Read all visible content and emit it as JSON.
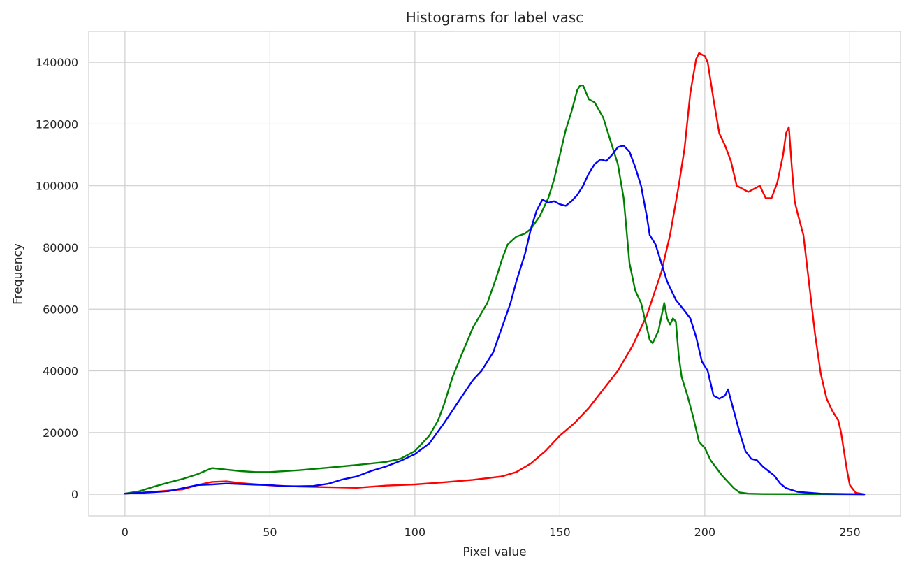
{
  "chart_data": {
    "type": "line",
    "title": "Histograms for label vasc",
    "xlabel": "Pixel value",
    "ylabel": "Frequency",
    "xlim": [
      -12.5,
      267.5
    ],
    "ylim": [
      -7000,
      150000
    ],
    "xticks": [
      0,
      50,
      100,
      150,
      200,
      250
    ],
    "yticks": [
      0,
      20000,
      40000,
      60000,
      80000,
      100000,
      120000,
      140000
    ],
    "xtick_labels": [
      "0",
      "50",
      "100",
      "150",
      "200",
      "250"
    ],
    "ytick_labels": [
      "0",
      "20000",
      "40000",
      "60000",
      "80000",
      "100000",
      "120000",
      "140000"
    ],
    "grid": true,
    "legend": "none",
    "series": [
      {
        "color": "#ff0000",
        "points": [
          [
            0,
            200
          ],
          [
            10,
            800
          ],
          [
            20,
            1600
          ],
          [
            25,
            3000
          ],
          [
            30,
            4000
          ],
          [
            35,
            4200
          ],
          [
            40,
            3600
          ],
          [
            50,
            2900
          ],
          [
            60,
            2500
          ],
          [
            70,
            2300
          ],
          [
            80,
            2100
          ],
          [
            90,
            2800
          ],
          [
            100,
            3200
          ],
          [
            110,
            3900
          ],
          [
            120,
            4700
          ],
          [
            130,
            5800
          ],
          [
            135,
            7200
          ],
          [
            140,
            10000
          ],
          [
            145,
            14000
          ],
          [
            150,
            19000
          ],
          [
            155,
            23000
          ],
          [
            160,
            28000
          ],
          [
            165,
            34000
          ],
          [
            170,
            40000
          ],
          [
            175,
            48000
          ],
          [
            180,
            58000
          ],
          [
            185,
            72000
          ],
          [
            188,
            84000
          ],
          [
            191,
            100000
          ],
          [
            193,
            112000
          ],
          [
            195,
            130000
          ],
          [
            197,
            141000
          ],
          [
            198,
            143000
          ],
          [
            200,
            142000
          ],
          [
            201,
            140000
          ],
          [
            203,
            128000
          ],
          [
            205,
            117000
          ],
          [
            207,
            113000
          ],
          [
            209,
            108000
          ],
          [
            211,
            100000
          ],
          [
            213,
            99000
          ],
          [
            215,
            98000
          ],
          [
            217,
            99000
          ],
          [
            219,
            100000
          ],
          [
            221,
            96000
          ],
          [
            223,
            96000
          ],
          [
            225,
            101000
          ],
          [
            227,
            110000
          ],
          [
            228,
            117000
          ],
          [
            229,
            119000
          ],
          [
            230,
            106000
          ],
          [
            231,
            95000
          ],
          [
            232,
            91000
          ],
          [
            234,
            84000
          ],
          [
            236,
            68000
          ],
          [
            238,
            52000
          ],
          [
            240,
            39000
          ],
          [
            242,
            31000
          ],
          [
            244,
            27000
          ],
          [
            246,
            24000
          ],
          [
            247,
            20000
          ],
          [
            249,
            8000
          ],
          [
            250,
            3000
          ],
          [
            252,
            500
          ],
          [
            255,
            0
          ]
        ]
      },
      {
        "color": "#008000",
        "points": [
          [
            0,
            200
          ],
          [
            5,
            1000
          ],
          [
            10,
            2500
          ],
          [
            15,
            3800
          ],
          [
            20,
            5000
          ],
          [
            25,
            6500
          ],
          [
            30,
            8500
          ],
          [
            35,
            8000
          ],
          [
            40,
            7500
          ],
          [
            45,
            7200
          ],
          [
            50,
            7200
          ],
          [
            60,
            7800
          ],
          [
            70,
            8600
          ],
          [
            80,
            9500
          ],
          [
            90,
            10500
          ],
          [
            95,
            11500
          ],
          [
            100,
            14000
          ],
          [
            105,
            19000
          ],
          [
            108,
            24000
          ],
          [
            110,
            29000
          ],
          [
            113,
            38000
          ],
          [
            116,
            45000
          ],
          [
            120,
            54000
          ],
          [
            125,
            62000
          ],
          [
            128,
            70000
          ],
          [
            130,
            76000
          ],
          [
            132,
            81000
          ],
          [
            135,
            83500
          ],
          [
            138,
            84500
          ],
          [
            140,
            86000
          ],
          [
            143,
            90000
          ],
          [
            146,
            96000
          ],
          [
            148,
            102000
          ],
          [
            150,
            110000
          ],
          [
            152,
            118000
          ],
          [
            154,
            124000
          ],
          [
            156,
            131000
          ],
          [
            157,
            132500
          ],
          [
            158,
            132500
          ],
          [
            160,
            128000
          ],
          [
            162,
            127000
          ],
          [
            165,
            122000
          ],
          [
            167,
            116000
          ],
          [
            170,
            107000
          ],
          [
            172,
            96000
          ],
          [
            174,
            75000
          ],
          [
            176,
            66000
          ],
          [
            178,
            62000
          ],
          [
            180,
            54000
          ],
          [
            181,
            50000
          ],
          [
            182,
            49000
          ],
          [
            184,
            53000
          ],
          [
            186,
            62000
          ],
          [
            187,
            57000
          ],
          [
            188,
            55000
          ],
          [
            189,
            57000
          ],
          [
            190,
            56000
          ],
          [
            191,
            45000
          ],
          [
            192,
            38000
          ],
          [
            194,
            32000
          ],
          [
            196,
            25000
          ],
          [
            198,
            17000
          ],
          [
            200,
            15000
          ],
          [
            202,
            11000
          ],
          [
            204,
            8500
          ],
          [
            206,
            6000
          ],
          [
            208,
            4000
          ],
          [
            210,
            2000
          ],
          [
            212,
            600
          ],
          [
            215,
            200
          ],
          [
            220,
            100
          ],
          [
            255,
            0
          ]
        ]
      },
      {
        "color": "#0000ff",
        "points": [
          [
            0,
            200
          ],
          [
            10,
            700
          ],
          [
            15,
            1000
          ],
          [
            20,
            2000
          ],
          [
            25,
            3000
          ],
          [
            30,
            3200
          ],
          [
            35,
            3500
          ],
          [
            40,
            3300
          ],
          [
            45,
            3100
          ],
          [
            50,
            3000
          ],
          [
            55,
            2600
          ],
          [
            60,
            2600
          ],
          [
            65,
            2700
          ],
          [
            70,
            3400
          ],
          [
            75,
            4800
          ],
          [
            80,
            5800
          ],
          [
            85,
            7600
          ],
          [
            90,
            9000
          ],
          [
            95,
            10800
          ],
          [
            100,
            13000
          ],
          [
            105,
            16500
          ],
          [
            110,
            23000
          ],
          [
            115,
            30000
          ],
          [
            120,
            37000
          ],
          [
            123,
            40000
          ],
          [
            127,
            46000
          ],
          [
            130,
            54000
          ],
          [
            133,
            62000
          ],
          [
            135,
            69000
          ],
          [
            138,
            78000
          ],
          [
            140,
            86000
          ],
          [
            142,
            92000
          ],
          [
            144,
            95500
          ],
          [
            146,
            94500
          ],
          [
            148,
            95000
          ],
          [
            150,
            94000
          ],
          [
            152,
            93500
          ],
          [
            154,
            95000
          ],
          [
            156,
            97000
          ],
          [
            158,
            100000
          ],
          [
            160,
            104000
          ],
          [
            162,
            107000
          ],
          [
            164,
            108500
          ],
          [
            166,
            108000
          ],
          [
            168,
            110000
          ],
          [
            170,
            112500
          ],
          [
            172,
            113000
          ],
          [
            174,
            111000
          ],
          [
            176,
            106000
          ],
          [
            178,
            100000
          ],
          [
            180,
            90000
          ],
          [
            181,
            84000
          ],
          [
            183,
            81000
          ],
          [
            185,
            75000
          ],
          [
            187,
            69000
          ],
          [
            190,
            63000
          ],
          [
            193,
            59500
          ],
          [
            195,
            57000
          ],
          [
            197,
            51000
          ],
          [
            199,
            43000
          ],
          [
            201,
            40000
          ],
          [
            203,
            32000
          ],
          [
            205,
            31000
          ],
          [
            207,
            32000
          ],
          [
            208,
            34000
          ],
          [
            210,
            27000
          ],
          [
            212,
            20000
          ],
          [
            214,
            14000
          ],
          [
            216,
            11500
          ],
          [
            218,
            11000
          ],
          [
            220,
            9000
          ],
          [
            222,
            7500
          ],
          [
            224,
            6000
          ],
          [
            226,
            3500
          ],
          [
            228,
            2000
          ],
          [
            232,
            800
          ],
          [
            240,
            200
          ],
          [
            255,
            0
          ]
        ]
      }
    ]
  }
}
